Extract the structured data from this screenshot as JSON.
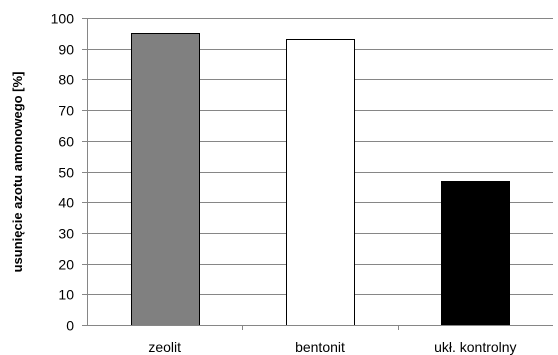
{
  "chart_data": {
    "type": "bar",
    "title": "",
    "xlabel": "",
    "ylabel": "usunięcie azotu amonowego [%]",
    "categories": [
      "zeolit",
      "bentonit",
      "ukł. kontrolny"
    ],
    "values": [
      95,
      93,
      47
    ],
    "bar_colors": [
      "#808080",
      "#ffffff",
      "#000000"
    ],
    "bar_edge_color": "#000000",
    "gridline_color": "#868686",
    "ylim": [
      0,
      100
    ],
    "yticks": [
      0,
      10,
      20,
      30,
      40,
      50,
      60,
      70,
      80,
      90,
      100
    ],
    "grid": true,
    "legend": "none"
  }
}
